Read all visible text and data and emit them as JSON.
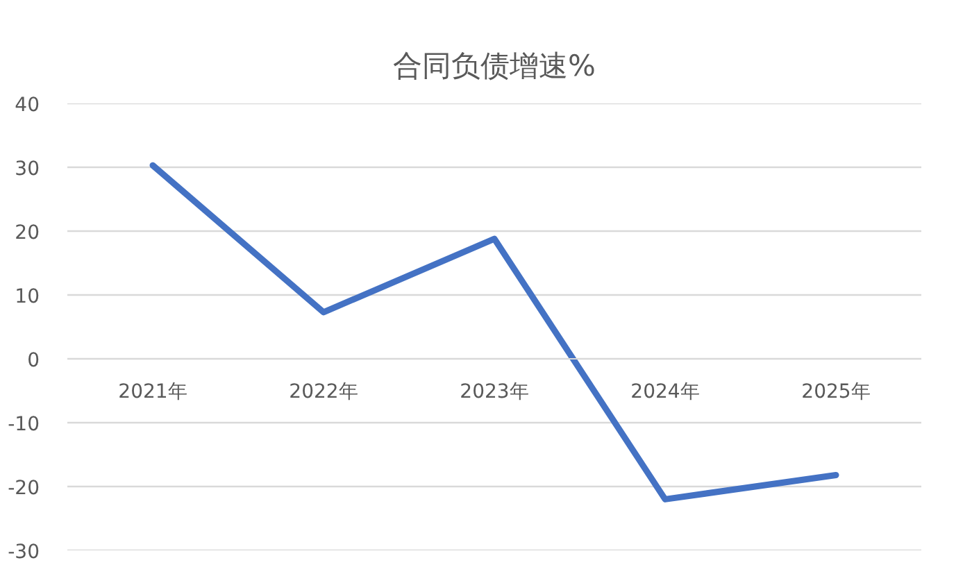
{
  "chart_data": {
    "type": "line",
    "title": "合同负债增速%",
    "categories": [
      "2021年",
      "2022年",
      "2023年",
      "2024年",
      "2025年"
    ],
    "series": [
      {
        "color": "#4472c4",
        "values": [
          30.3,
          7.3,
          18.8,
          -22,
          -18.2
        ]
      }
    ],
    "ylim": [
      -30,
      40
    ],
    "yticks": [
      -30,
      -20,
      -10,
      0,
      10,
      20,
      30,
      40
    ],
    "grid": "y",
    "line_style": "solid"
  }
}
